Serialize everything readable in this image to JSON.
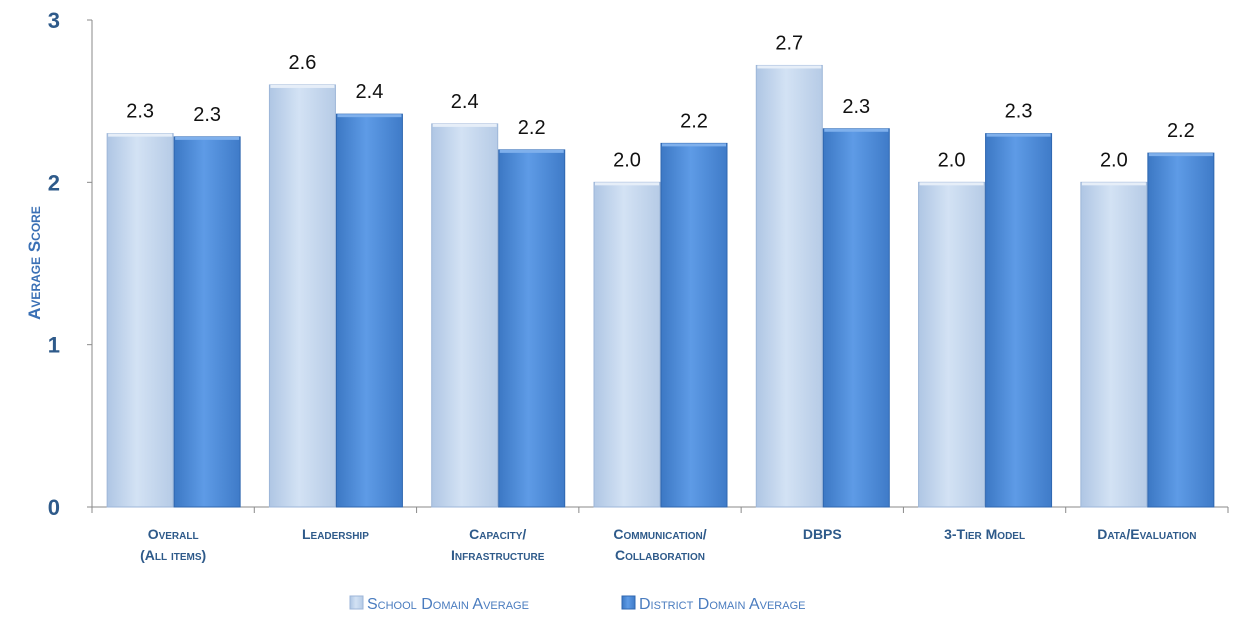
{
  "chart_data": {
    "type": "bar",
    "categories": [
      [
        "Overall",
        "(All items)"
      ],
      [
        "Leadership"
      ],
      [
        "Capacity/",
        "Infrastructure"
      ],
      [
        "Communication/",
        "Collaboration"
      ],
      [
        "DBPS"
      ],
      [
        "3-Tier Model"
      ],
      [
        "Data/Evaluation"
      ]
    ],
    "series": [
      {
        "name": "School Domain Average",
        "values": [
          2.3,
          2.6,
          2.36,
          2.0,
          2.72,
          2.0,
          2.0
        ],
        "labels": [
          "2.3",
          "2.6",
          "2.4",
          "2.0",
          "2.7",
          "2.0",
          "2.0"
        ],
        "color": "#C6D9F0"
      },
      {
        "name": "District Domain Average",
        "values": [
          2.28,
          2.42,
          2.2,
          2.24,
          2.33,
          2.3,
          2.18
        ],
        "labels": [
          "2.3",
          "2.4",
          "2.2",
          "2.2",
          "2.3",
          "2.3",
          "2.2"
        ],
        "color": "#4A8CDB"
      }
    ],
    "ylabel": "Average Score",
    "yticks": [
      "0",
      "1",
      "2",
      "3"
    ],
    "ylim": [
      0,
      3
    ],
    "grid": false,
    "legend_position": "bottom"
  }
}
